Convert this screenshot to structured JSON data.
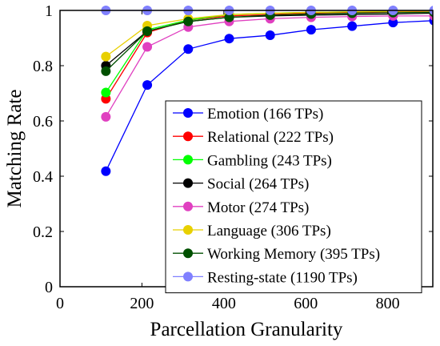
{
  "chart_data": {
    "type": "line",
    "xlabel": "Parcellation Granularity",
    "ylabel": "Matching Rate",
    "xlim": [
      0,
      910
    ],
    "ylim": [
      0,
      1
    ],
    "xticks": [
      0,
      200,
      400,
      600,
      800
    ],
    "yticks": [
      0,
      0.2,
      0.4,
      0.6,
      0.8,
      1
    ],
    "xtick_labels": [
      "0",
      "200",
      "400",
      "600",
      "800"
    ],
    "ytick_labels": [
      "0",
      "0.2",
      "0.4",
      "0.6",
      "0.8",
      "1"
    ],
    "grid": false,
    "legend_position": "bottom-right",
    "x": [
      112,
      213,
      313,
      413,
      513,
      613,
      713,
      813,
      913
    ],
    "series": [
      {
        "name": "Emotion (166 TPs)",
        "color": "#0000ff",
        "values": [
          0.418,
          0.73,
          0.86,
          0.898,
          0.91,
          0.93,
          0.943,
          0.956,
          0.963
        ]
      },
      {
        "name": "Relational (222 TPs)",
        "color": "#ff0000",
        "values": [
          0.68,
          0.92,
          0.965,
          0.98,
          0.985,
          0.99,
          0.992,
          0.995,
          0.997
        ]
      },
      {
        "name": "Gambling (243 TPs)",
        "color": "#00ff00",
        "values": [
          0.703,
          0.93,
          0.965,
          0.985,
          0.99,
          0.993,
          0.995,
          0.997,
          0.998
        ]
      },
      {
        "name": "Social (264 TPs)",
        "color": "#000000",
        "values": [
          0.8,
          0.925,
          0.96,
          0.975,
          0.98,
          0.983,
          0.985,
          0.987,
          0.99
        ]
      },
      {
        "name": "Motor (274 TPs)",
        "color": "#e040c0",
        "values": [
          0.615,
          0.868,
          0.94,
          0.96,
          0.97,
          0.975,
          0.978,
          0.98,
          0.98
        ]
      },
      {
        "name": "Language (306 TPs)",
        "color": "#e8d000",
        "values": [
          0.833,
          0.945,
          0.97,
          0.985,
          0.99,
          0.993,
          0.995,
          0.997,
          0.998
        ]
      },
      {
        "name": "Working Memory (395 TPs)",
        "color": "#005000",
        "values": [
          0.78,
          0.925,
          0.96,
          0.975,
          0.983,
          0.987,
          0.99,
          0.992,
          0.993
        ]
      },
      {
        "name": "Resting-state (1190 TPs)",
        "color": "#8080ff",
        "values": [
          1.0,
          1.0,
          1.0,
          1.0,
          1.0,
          1.0,
          1.0,
          1.0,
          1.0
        ]
      }
    ]
  }
}
